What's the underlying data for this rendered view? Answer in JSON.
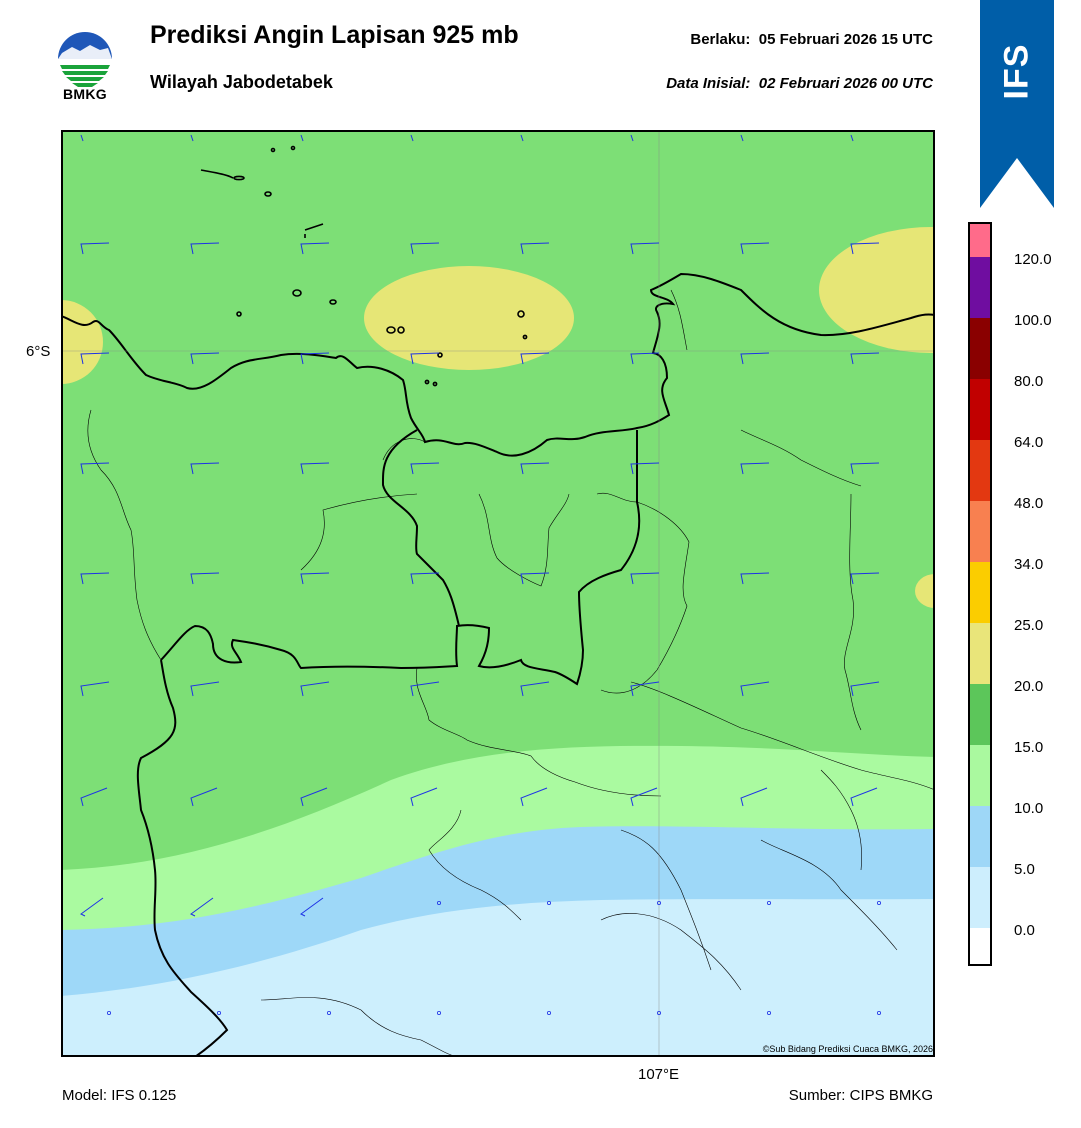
{
  "header": {
    "agency": "BMKG",
    "title": "Prediksi Angin Lapisan 925 mb",
    "subtitle": "Wilayah Jabodetabek",
    "valid_label": "Berlaku:",
    "valid_time": "05 Februari 2026 15 UTC",
    "init_label": "Data Inisial:",
    "init_time": "02 Februari 2026 00 UTC",
    "model_badge": "IFS"
  },
  "map": {
    "lat_label": "6°S",
    "lon_label": "107°E",
    "credit": "©Sub Bidang Prediksi Cuaca BMKG, 2026"
  },
  "footer": {
    "model": "Model: IFS 0.125",
    "source": "Sumber: CIPS BMKG"
  },
  "colorbar": {
    "unit_ticks": [
      "0.0",
      "5.0",
      "10.0",
      "15.0",
      "20.0",
      "25.0",
      "34.0",
      "48.0",
      "64.0",
      "80.0",
      "100.0",
      "120.0"
    ],
    "colors_bottom_to_top": [
      "#ffffff",
      "#cdeefd",
      "#9ed7f7",
      "#aaf99f",
      "#5cc65a",
      "#e9e57a",
      "#fbcd00",
      "#f88050",
      "#e33811",
      "#c10000",
      "#8a0000",
      "#6f0da0",
      "#ff6b8a"
    ]
  },
  "colors": {
    "brand_blue": "#005ea8",
    "barb_blue": "#1e32e6",
    "land_green": "#7ddf76"
  }
}
